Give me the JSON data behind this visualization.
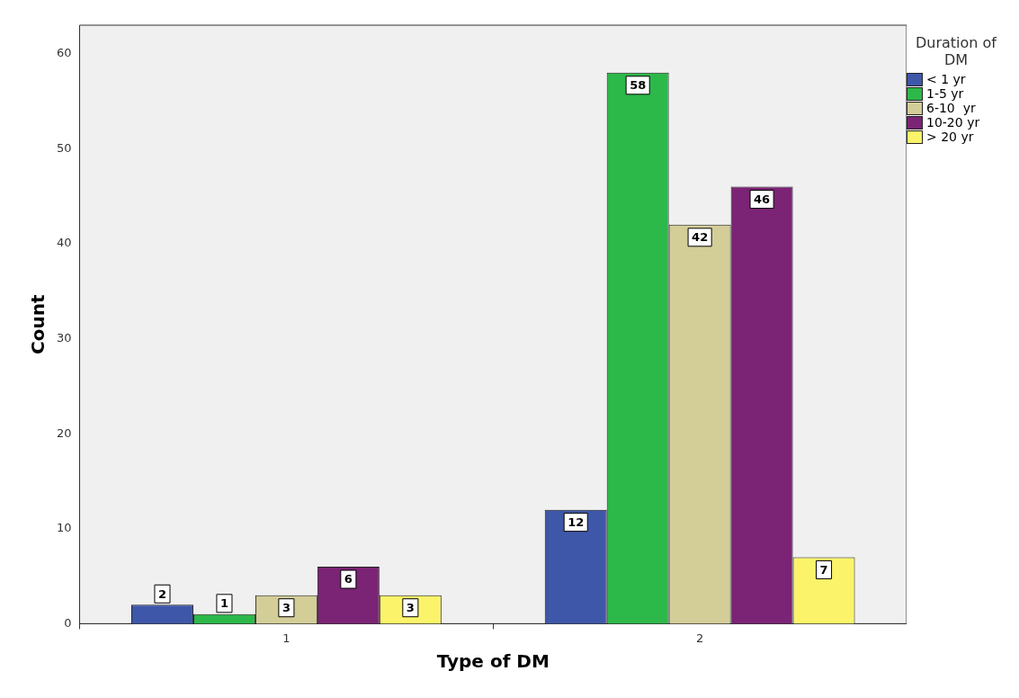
{
  "chart_data": {
    "type": "bar",
    "xlabel": "Type of DM",
    "ylabel": "Count",
    "legend_title": "Duration of DM",
    "categories": [
      "1",
      "2"
    ],
    "series": [
      {
        "name": "< 1 yr",
        "color": "#3f57a8",
        "values": [
          2,
          12
        ]
      },
      {
        "name": "1-5 yr",
        "color": "#2db84a",
        "values": [
          1,
          58
        ]
      },
      {
        "name": "6-10  yr",
        "color": "#d3cd98",
        "values": [
          3,
          42
        ]
      },
      {
        "name": "10-20 yr",
        "color": "#7b2374",
        "values": [
          6,
          46
        ]
      },
      {
        "name": "> 20 yr",
        "color": "#fbf46a",
        "values": [
          3,
          7
        ]
      }
    ],
    "ylim": [
      0,
      63
    ],
    "yticks": [
      0,
      10,
      20,
      30,
      40,
      50,
      60
    ],
    "grid": false,
    "legend": "top right",
    "data_labels": true
  }
}
